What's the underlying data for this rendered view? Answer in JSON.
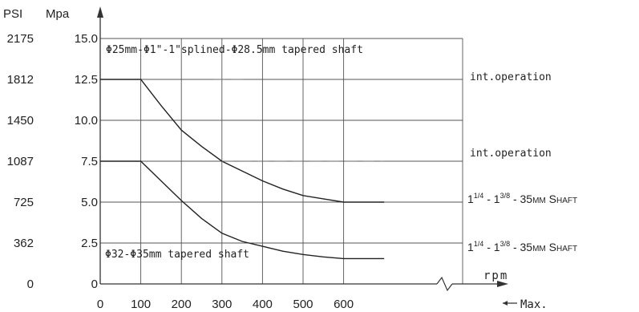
{
  "chart_data": {
    "type": "line",
    "axis_labels": {
      "psi_unit": "PSI",
      "mpa_unit": "Mpa",
      "x_unit": "rpm",
      "x_max_label": "Max."
    },
    "psi_ticks": [
      "2175",
      "1812",
      "1450",
      "1087",
      "725",
      "362",
      "0"
    ],
    "mpa_ticks": [
      "15.0",
      "12.5",
      "10.0",
      "7.5",
      "5.0",
      "2.5",
      "0"
    ],
    "mpa_tick_values": [
      15.0,
      12.5,
      10.0,
      7.5,
      5.0,
      2.5,
      0
    ],
    "x_ticks": [
      "0",
      "100",
      "200",
      "300",
      "400",
      "500",
      "600"
    ],
    "x_tick_values": [
      0,
      100,
      200,
      300,
      400,
      500,
      600
    ],
    "xlim": [
      0,
      700
    ],
    "ylim": [
      0,
      15
    ],
    "grid": true,
    "annotations": {
      "top_label": "Φ25mm-Φ1\"-1\"splined-Φ28.5mm tapered shaft",
      "bottom_label": "Φ32-Φ35mm tapered shaft",
      "int_operation_upper": "int.operation",
      "int_operation_lower": "int.operation",
      "shaft_upper": {
        "a": "1",
        "a_sup": "1/4",
        "sep": " - ",
        "b": "1",
        "b_sup": "3/8",
        "tail": " - 35",
        "mm": "MM",
        "s": "S",
        "haft": "HAFT"
      },
      "shaft_lower": {
        "a": "1",
        "a_sup": "1/4",
        "sep": " - ",
        "b": "1",
        "b_sup": "3/8",
        "tail": " - 35",
        "mm": "MM",
        "s": "S",
        "haft": "HAFT"
      }
    },
    "series": [
      {
        "style": "solid",
        "x": [
          0,
          100,
          150,
          200,
          250,
          300,
          350,
          400,
          450,
          500,
          550,
          600,
          700
        ],
        "y": [
          12.5,
          12.5,
          10.9,
          9.4,
          8.4,
          7.5,
          6.9,
          6.3,
          5.8,
          5.4,
          5.2,
          5.0,
          5.0
        ]
      },
      {
        "style": "solid",
        "x": [
          0,
          100,
          150,
          200,
          250,
          300,
          350,
          400,
          450,
          500,
          550,
          600,
          700
        ],
        "y": [
          7.5,
          7.5,
          6.3,
          5.1,
          4.0,
          3.1,
          2.6,
          2.3,
          2.0,
          1.8,
          1.65,
          1.55,
          1.55
        ]
      },
      {
        "style": "dashed",
        "x": [
          300,
          700
        ],
        "y": [
          7.5,
          7.5
        ]
      },
      {
        "style": "dashed",
        "x": [
          280,
          360
        ],
        "y": [
          12.5,
          12.5
        ]
      }
    ]
  }
}
